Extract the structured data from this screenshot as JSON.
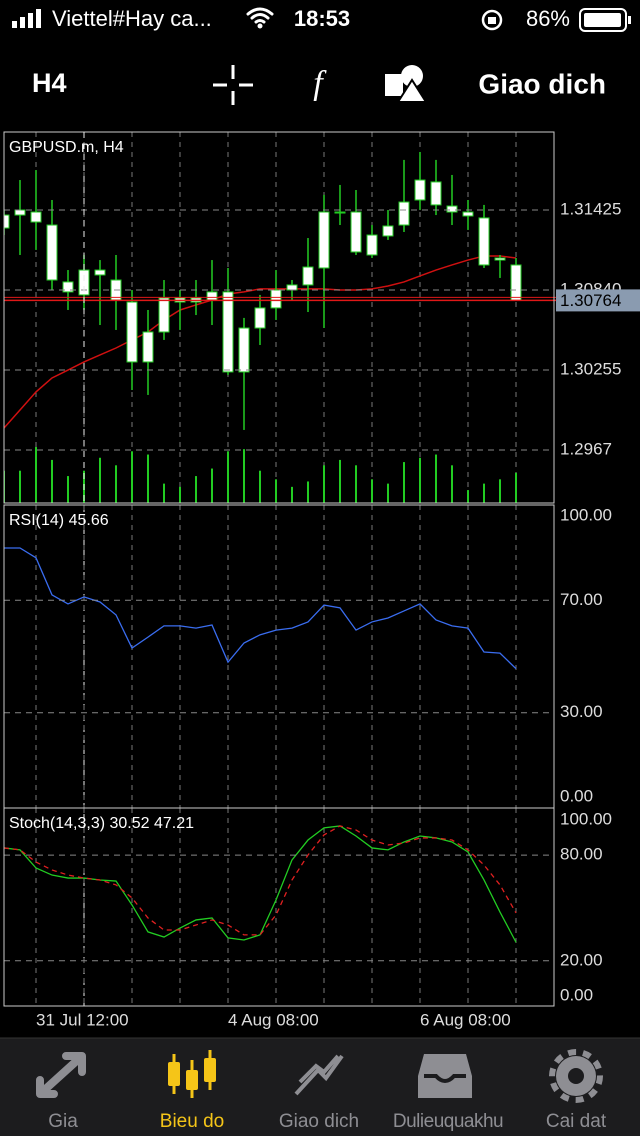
{
  "status_bar": {
    "carrier": "Viettel#Hay ca...",
    "time": "18:53",
    "battery": "86%"
  },
  "toolbar": {
    "timeframe": "H4",
    "function": "f",
    "trade": "Giao dich"
  },
  "chart_data": [
    {
      "type": "candlestick",
      "title": "GBPUSD.m, H4",
      "categories": [
        null,
        null,
        "31 Jul 12:00",
        null,
        null,
        null,
        null,
        null,
        null,
        null,
        null,
        null,
        null,
        null,
        "4 Aug 08:00",
        null,
        null,
        null,
        null,
        null,
        null,
        null,
        null,
        null,
        null,
        null,
        "6 Aug 08:00",
        null,
        null,
        null,
        null,
        null,
        null
      ],
      "open": [
        1.31293,
        1.31425,
        1.3141,
        1.31315,
        1.30899,
        1.30804,
        1.30986,
        1.30913,
        1.30752,
        1.30314,
        1.30533,
        1.30752,
        1.30752,
        1.30767,
        1.30826,
        1.30241,
        1.30562,
        1.30709,
        1.3084,
        1.30877,
        1.31001,
        1.3141,
        1.3141,
        1.31096,
        1.31235,
        1.31315,
        1.31498,
        1.3163,
        1.31454,
        1.3141,
        1.31367,
        1.31074,
        1.31023
      ],
      "high": [
        1.31425,
        1.31644,
        1.31717,
        1.31498,
        1.30986,
        1.31096,
        1.31059,
        1.31096,
        1.3084,
        1.30694,
        1.30913,
        1.3084,
        1.30913,
        1.31059,
        1.31001,
        1.30636,
        1.30804,
        1.30986,
        1.30913,
        1.3122,
        1.31535,
        1.31608,
        1.31571,
        1.31315,
        1.31425,
        1.31791,
        1.31849,
        1.31791,
        1.31681,
        1.31498,
        1.31462,
        1.31096,
        1.31074
      ],
      "low": [
        1.31242,
        1.31096,
        1.31133,
        1.3084,
        1.30694,
        1.30694,
        1.30584,
        1.30548,
        1.30109,
        1.30073,
        1.30475,
        1.30548,
        1.30657,
        1.30584,
        1.30219,
        1.29817,
        1.30438,
        1.30621,
        1.30767,
        1.30679,
        1.30562,
        1.31315,
        1.31096,
        1.31074,
        1.31206,
        1.31264,
        1.31425,
        1.31388,
        1.31315,
        1.31279,
        1.31001,
        1.30928,
        1.30764
      ],
      "close": [
        1.31388,
        1.31388,
        1.31337,
        1.30913,
        1.30826,
        1.30986,
        1.3095,
        1.30767,
        1.30314,
        1.30533,
        1.30782,
        1.30782,
        1.30782,
        1.30826,
        1.30241,
        1.30562,
        1.30709,
        1.3084,
        1.30877,
        1.31008,
        1.3141,
        1.31403,
        1.31118,
        1.31242,
        1.31308,
        1.31483,
        1.31644,
        1.31462,
        1.3141,
        1.31381,
        1.31023,
        1.31059,
        1.30764
      ],
      "candle_color": "#ffffff",
      "wick_color": "#22cc22",
      "ma": {
        "color": "#d01010",
        "values": [
          1.29831,
          1.29963,
          1.30095,
          1.30197,
          1.30255,
          1.30314,
          1.30365,
          1.30416,
          1.30475,
          1.30533,
          1.30621,
          1.30694,
          1.30731,
          1.30767,
          1.30811,
          1.30826,
          1.30848,
          1.30848,
          1.30848,
          1.30848,
          1.30848,
          1.3084,
          1.3084,
          1.30848,
          1.30869,
          1.30899,
          1.30943,
          1.30986,
          1.31023,
          1.31059,
          1.31089,
          1.31089,
          1.31074
        ]
      },
      "volume": {
        "color": "#22cc22",
        "values": [
          30,
          30,
          52,
          40,
          25,
          30,
          42,
          35,
          48,
          45,
          18,
          15,
          25,
          32,
          48,
          50,
          30,
          22,
          15,
          20,
          35,
          40,
          35,
          22,
          18,
          38,
          42,
          45,
          35,
          12,
          18,
          22,
          28
        ]
      },
      "bid": 1.30764,
      "bid_color": "#e01818",
      "ylim": [
        1.29283,
        1.31995
      ],
      "yticks": [
        1.31425,
        {
          "value": 1.3084,
          "label": "1.30840"
        },
        1.30255,
        1.2967
      ],
      "grid": true
    },
    {
      "type": "line",
      "title": "RSI(14) 45.66",
      "series": [
        {
          "color": "#3a6df0",
          "values": [
            88.6,
            88.6,
            85.1,
            71.9,
            68.7,
            71.2,
            69.4,
            64.8,
            53.0,
            56.9,
            60.9,
            60.9,
            60.1,
            61.2,
            48.0,
            54.8,
            57.7,
            59.4,
            60.1,
            62.3,
            68.3,
            67.3,
            59.4,
            62.3,
            63.7,
            66.2,
            68.7,
            63.0,
            60.9,
            60.1,
            51.6,
            51.2,
            45.66
          ]
        }
      ],
      "ylim": [
        -3.9,
        103.9
      ],
      "yticks": [
        {
          "value": 100,
          "label": "100.00"
        },
        {
          "value": 70,
          "label": "70.00"
        },
        {
          "value": 30,
          "label": "30.00"
        },
        {
          "value": 0,
          "label": "0.00"
        }
      ],
      "grid": "inner"
    },
    {
      "type": "line",
      "title": "Stoch(14,3,3) 30.52 47.21",
      "series": [
        {
          "color": "#22cc22",
          "values": [
            84.1,
            83.0,
            72.7,
            68.7,
            67.0,
            67.0,
            65.9,
            65.3,
            51.7,
            36.4,
            33.5,
            38.6,
            43.2,
            44.3,
            33.0,
            31.8,
            34.7,
            54.5,
            77.3,
            88.6,
            95.5,
            96.6,
            90.9,
            84.1,
            83.0,
            87.5,
            90.9,
            89.8,
            87.5,
            81.8,
            65.9,
            47.7,
            30.52
          ]
        },
        {
          "color": "#e02020",
          "dash": true,
          "values": [
            84.1,
            83.0,
            76.1,
            71.6,
            68.7,
            67.0,
            65.9,
            63.1,
            55.7,
            44.3,
            37.5,
            37.5,
            40.3,
            43.2,
            40.3,
            34.7,
            34.7,
            46.0,
            65.9,
            80.1,
            91.5,
            96.6,
            94.3,
            88.6,
            85.8,
            86.9,
            89.8,
            89.8,
            88.6,
            83.0,
            74.4,
            63.1,
            47.21
          ]
        }
      ],
      "ylim": [
        -5.7,
        106.8
      ],
      "yticks": [
        {
          "value": 100,
          "label": "100.00"
        },
        {
          "value": 80,
          "label": "80.00"
        },
        {
          "value": 20,
          "label": "20.00"
        },
        {
          "value": 0,
          "label": "0.00"
        }
      ],
      "grid": "inner"
    }
  ],
  "tab_bar": {
    "items": [
      "Gia",
      "Bieu do",
      "Giao dich",
      "Dulieuquakhu",
      "Cai dat"
    ],
    "active_color": "#f5c518"
  }
}
